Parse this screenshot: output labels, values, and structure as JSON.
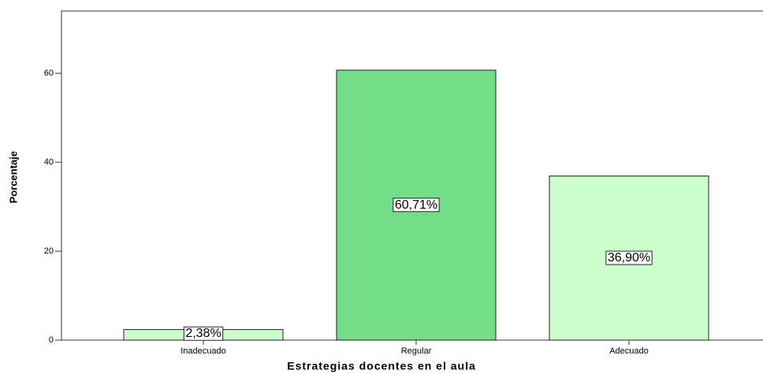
{
  "chart_data": {
    "type": "bar",
    "x_label": "Estrategias docentes en el aula",
    "y_label": "Porcentaje",
    "categories": [
      "Inadecuado",
      "Regular",
      "Adecuado"
    ],
    "values": [
      2.38,
      60.71,
      36.9
    ],
    "value_labels": [
      "2,38%",
      "60,71%",
      "36,90%"
    ],
    "colors": [
      "#ccffcc",
      "#73de87",
      "#ccffcc"
    ],
    "ylim": [
      0,
      74
    ],
    "yticks": [
      0,
      20,
      40,
      60
    ],
    "grid": false
  }
}
